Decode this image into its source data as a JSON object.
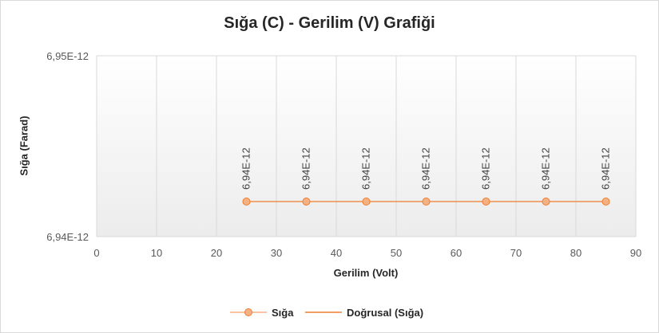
{
  "chart_data": {
    "type": "line",
    "title": "Sığa (C) - Gerilim (V) Grafiği",
    "xlabel": "Gerilim (Volt)",
    "ylabel": "Sığa (Farad)",
    "xlim": [
      0,
      90
    ],
    "x_ticks": [
      "0",
      "10",
      "20",
      "30",
      "40",
      "50",
      "60",
      "70",
      "80",
      "90"
    ],
    "y_ticks": [
      "6,94E-12",
      "6,95E-12"
    ],
    "grid": "vertical",
    "legend_position": "bottom",
    "x": [
      25,
      35,
      45,
      55,
      65,
      75,
      85
    ],
    "series": [
      {
        "name": "Sığa",
        "values": [
          6.94e-12,
          6.94e-12,
          6.94e-12,
          6.94e-12,
          6.94e-12,
          6.94e-12,
          6.94e-12
        ],
        "data_labels": [
          "6,94E-12",
          "6,94E-12",
          "6,94E-12",
          "6,94E-12",
          "6,94E-12",
          "6,94E-12",
          "6,94E-12"
        ],
        "color": "#f4b183"
      },
      {
        "name": "Doğrusal (Sığa)",
        "kind": "trendline",
        "color": "#ed7d31"
      }
    ]
  }
}
